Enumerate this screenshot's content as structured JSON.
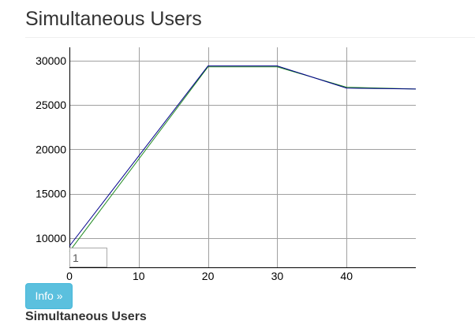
{
  "header": {
    "title": "Simultaneous Users"
  },
  "chart_data": {
    "type": "line",
    "title": "",
    "xlabel": "",
    "ylabel": "",
    "xlim": [
      0,
      50
    ],
    "ylim": [
      6700,
      31500
    ],
    "x_ticks": [
      "0",
      "10",
      "20",
      "30",
      "40"
    ],
    "y_ticks": [
      "10000",
      "15000",
      "20000",
      "25000",
      "30000"
    ],
    "x_tick_values": [
      0,
      10,
      20,
      30,
      40
    ],
    "y_tick_values": [
      10000,
      15000,
      20000,
      25000,
      30000
    ],
    "grid": true,
    "series": [
      {
        "color": "#00008b",
        "points": [
          [
            0,
            9100
          ],
          [
            20,
            29400
          ],
          [
            30,
            29400
          ],
          [
            40,
            26900
          ],
          [
            50,
            26800
          ]
        ]
      },
      {
        "color": "#228b22",
        "points": [
          [
            0,
            8500
          ],
          [
            20,
            29300
          ],
          [
            30,
            29300
          ],
          [
            40,
            27000
          ],
          [
            50,
            26800
          ]
        ]
      }
    ]
  },
  "chart_input": {
    "value": "1"
  },
  "info_button": {
    "label": "Info »",
    "color": "#5bc0de"
  },
  "section": {
    "heading": "Simultaneous Users"
  }
}
